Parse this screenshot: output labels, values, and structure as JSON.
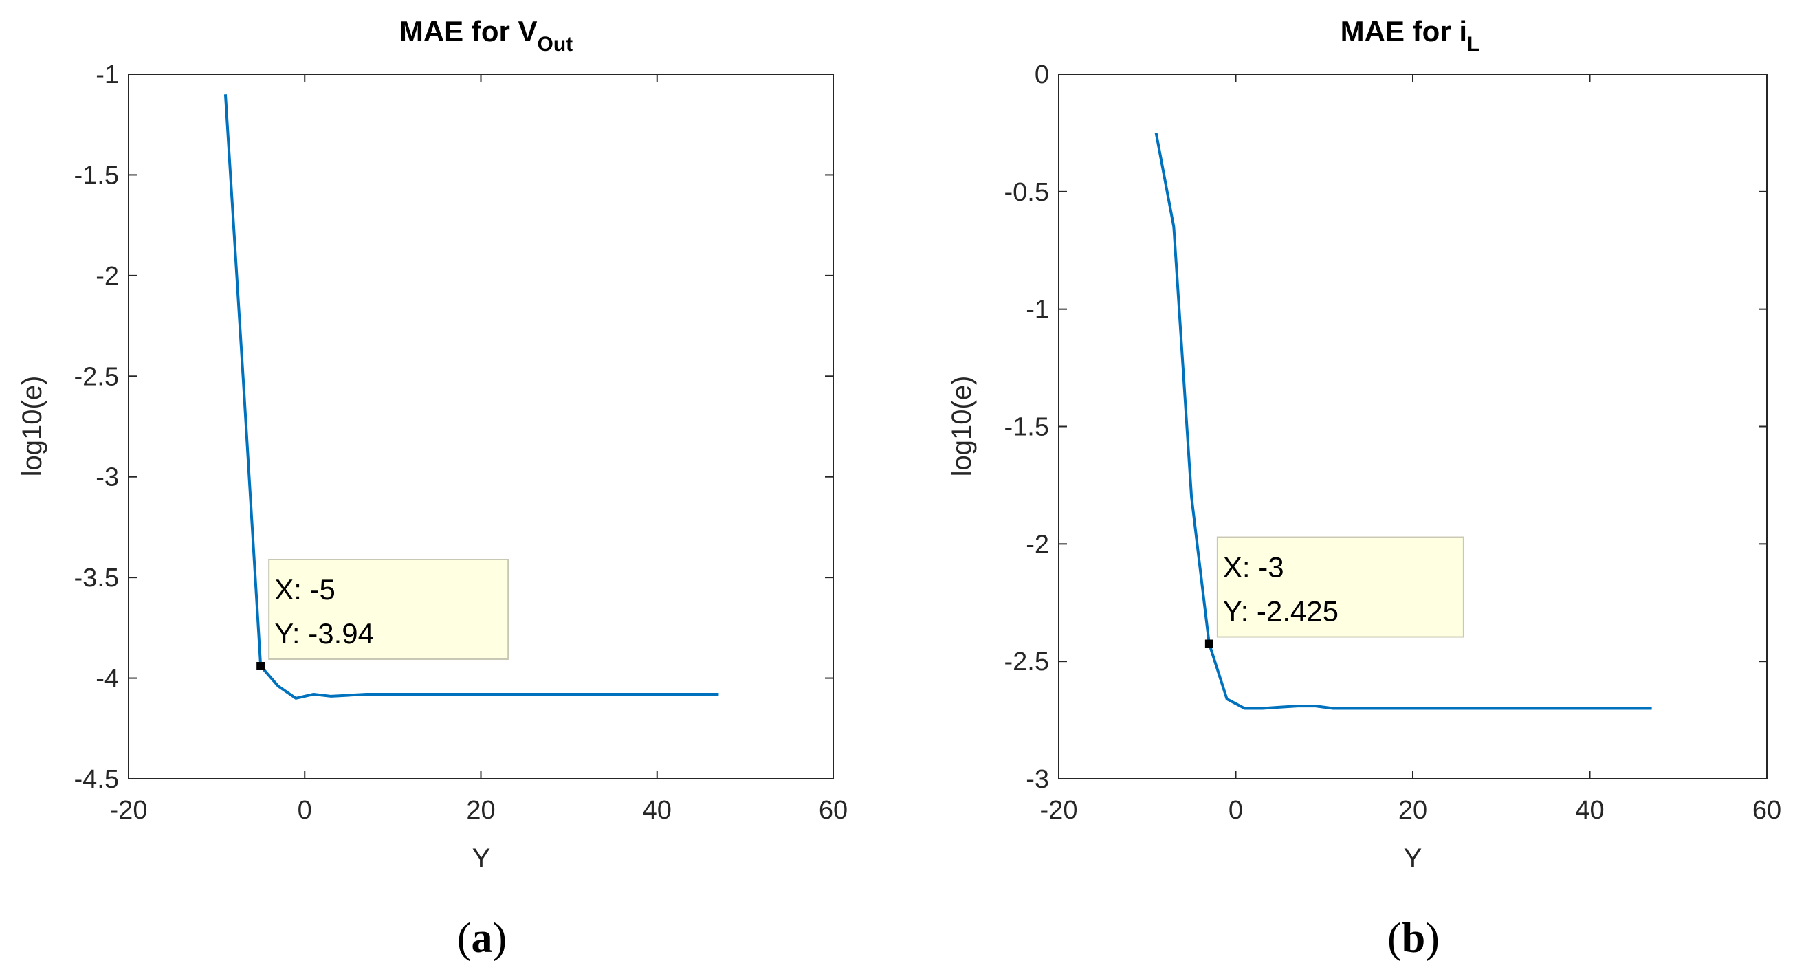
{
  "colors": {
    "line": "#0072BD",
    "axes": "#262626",
    "datatip_bg": "#FFFFE1",
    "datatip_border": "#C8C8B4"
  },
  "chart_data": [
    {
      "type": "line",
      "panel": "a",
      "panel_label_letter": "a",
      "title_main": "MAE for V",
      "title_sub": "Out",
      "xlabel": "Y",
      "ylabel": "log10(e)",
      "xlim": [
        -20,
        60
      ],
      "ylim": [
        -4.5,
        -1
      ],
      "xticks": [
        -20,
        0,
        20,
        40,
        60
      ],
      "xtick_labels": [
        "-20",
        "0",
        "20",
        "40",
        "60"
      ],
      "yticks": [
        -4.5,
        -4,
        -3.5,
        -3,
        -2.5,
        -2,
        -1.5,
        -1
      ],
      "ytick_labels": [
        "-4.5",
        "-4",
        "-3.5",
        "-3",
        "-2.5",
        "-2",
        "-1.5",
        "-1"
      ],
      "series": [
        {
          "name": "MAE",
          "x": [
            -9,
            -7,
            -5,
            -3,
            -1,
            1,
            3,
            5,
            7,
            9,
            11,
            15,
            20,
            30,
            40,
            47
          ],
          "y": [
            -1.1,
            -2.5,
            -3.94,
            -4.04,
            -4.1,
            -4.08,
            -4.09,
            -4.085,
            -4.08,
            -4.08,
            -4.08,
            -4.08,
            -4.08,
            -4.08,
            -4.08,
            -4.08
          ]
        }
      ],
      "datatip": {
        "x": -5,
        "y": -3.94,
        "line1": "X: -5",
        "line2": "Y: -3.94"
      }
    },
    {
      "type": "line",
      "panel": "b",
      "panel_label_letter": "b",
      "title_main": "MAE for i",
      "title_sub": "L",
      "xlabel": "Y",
      "ylabel": "log10(e)",
      "xlim": [
        -20,
        60
      ],
      "ylim": [
        -3,
        0
      ],
      "xticks": [
        -20,
        0,
        20,
        40,
        60
      ],
      "xtick_labels": [
        "-20",
        "0",
        "20",
        "40",
        "60"
      ],
      "yticks": [
        -3,
        -2.5,
        -2,
        -1.5,
        -1,
        -0.5,
        0
      ],
      "ytick_labels": [
        "-3",
        "-2.5",
        "-2",
        "-1.5",
        "-1",
        "-0.5",
        "0"
      ],
      "series": [
        {
          "name": "MAE",
          "x": [
            -9,
            -7,
            -5,
            -3,
            -1,
            1,
            3,
            5,
            7,
            9,
            11,
            15,
            20,
            30,
            40,
            47
          ],
          "y": [
            -0.25,
            -0.65,
            -1.8,
            -2.425,
            -2.66,
            -2.7,
            -2.7,
            -2.695,
            -2.69,
            -2.69,
            -2.7,
            -2.7,
            -2.7,
            -2.7,
            -2.7,
            -2.7
          ]
        }
      ],
      "datatip": {
        "x": -3,
        "y": -2.425,
        "line1": "X: -3",
        "line2": "Y: -2.425"
      }
    }
  ]
}
